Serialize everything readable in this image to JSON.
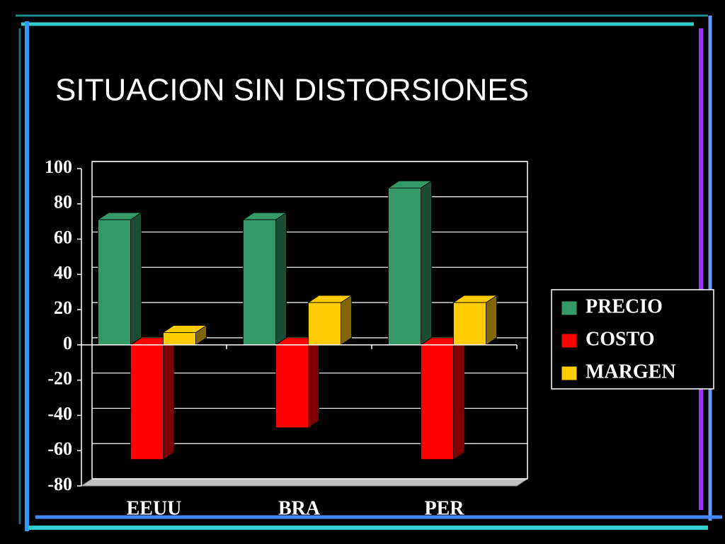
{
  "chart_data": {
    "type": "bar3d",
    "title": "SITUACION SIN DISTORSIONES",
    "categories": [
      "EEUU",
      "BRA",
      "PER"
    ],
    "series": [
      {
        "name": "PRECIO",
        "color": "#339966",
        "values": [
          71,
          71,
          89
        ]
      },
      {
        "name": "COSTO",
        "color": "#ff0000",
        "values": [
          -65,
          -47,
          -65
        ]
      },
      {
        "name": "MARGEN",
        "color": "#ffcc00",
        "values": [
          7,
          24,
          24
        ]
      }
    ],
    "ylim": [
      -80,
      100
    ],
    "yticks": [
      -80,
      -60,
      -40,
      -20,
      0,
      20,
      40,
      60,
      80,
      100
    ],
    "grid": true,
    "legend": "right"
  }
}
